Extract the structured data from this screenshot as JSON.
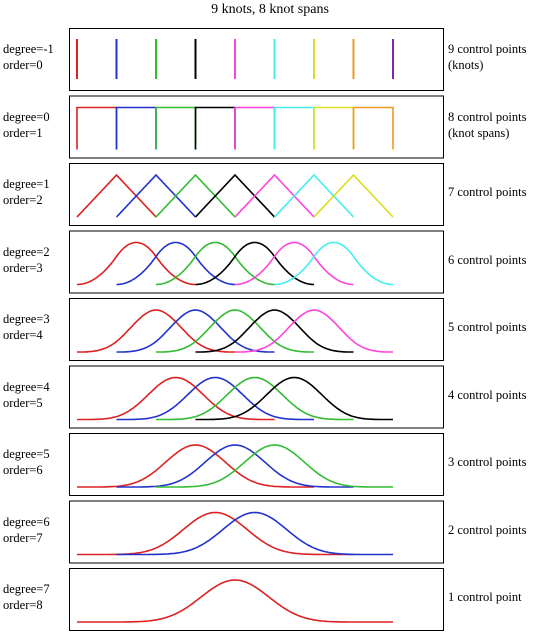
{
  "title": "9 knots, 8 knot spans",
  "colors": [
    "#dd2222",
    "#2233cc",
    "#33bb33",
    "#000000",
    "#ff44dd",
    "#44eeee",
    "#dddd22",
    "#ee9922",
    "#8822aa"
  ],
  "knots": [
    0,
    1,
    2,
    3,
    4,
    5,
    6,
    7,
    8
  ],
  "rows": [
    {
      "degree_label": "degree=-1",
      "order_label": "order=0",
      "right_lines": [
        "9 control points",
        "(knots)"
      ],
      "degree": -1
    },
    {
      "degree_label": "degree=0",
      "order_label": "order=1",
      "right_lines": [
        "8 control points",
        "(knot spans)"
      ],
      "degree": 0
    },
    {
      "degree_label": "degree=1",
      "order_label": "order=2",
      "right_lines": [
        "7 control points"
      ],
      "degree": 1
    },
    {
      "degree_label": "degree=2",
      "order_label": "order=3",
      "right_lines": [
        "6 control points"
      ],
      "degree": 2
    },
    {
      "degree_label": "degree=3",
      "order_label": "order=4",
      "right_lines": [
        "5 control points"
      ],
      "degree": 3
    },
    {
      "degree_label": "degree=4",
      "order_label": "order=5",
      "right_lines": [
        "4 control points"
      ],
      "degree": 4
    },
    {
      "degree_label": "degree=5",
      "order_label": "order=6",
      "right_lines": [
        "3 control points"
      ],
      "degree": 5
    },
    {
      "degree_label": "degree=6",
      "order_label": "order=7",
      "right_lines": [
        "2 control points"
      ],
      "degree": 6
    },
    {
      "degree_label": "degree=7",
      "order_label": "order=8",
      "right_lines": [
        "1 control point"
      ],
      "degree": 7
    }
  ]
}
